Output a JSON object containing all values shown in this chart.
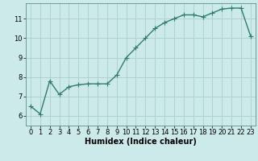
{
  "x": [
    0,
    1,
    2,
    3,
    4,
    5,
    6,
    7,
    8,
    9,
    10,
    11,
    12,
    13,
    14,
    15,
    16,
    17,
    18,
    19,
    20,
    21,
    22,
    23
  ],
  "y": [
    6.5,
    6.1,
    7.8,
    7.1,
    7.5,
    7.6,
    7.65,
    7.65,
    7.65,
    8.1,
    9.0,
    9.5,
    10.0,
    10.5,
    10.8,
    11.0,
    11.2,
    11.2,
    11.1,
    11.3,
    11.5,
    11.55,
    11.55,
    10.1
  ],
  "line_color": "#2e7d6e",
  "marker": "+",
  "marker_color": "#2e7d6e",
  "marker_size": 4,
  "bg_color": "#cceaea",
  "grid_color": "#aacece",
  "xlabel": "Humidex (Indice chaleur)",
  "xlim": [
    -0.5,
    23.5
  ],
  "ylim": [
    5.5,
    11.8
  ],
  "yticks": [
    6,
    7,
    8,
    9,
    10,
    11
  ],
  "xticks": [
    0,
    1,
    2,
    3,
    4,
    5,
    6,
    7,
    8,
    9,
    10,
    11,
    12,
    13,
    14,
    15,
    16,
    17,
    18,
    19,
    20,
    21,
    22,
    23
  ],
  "linewidth": 1.0,
  "xlabel_fontsize": 7,
  "tick_fontsize": 6,
  "marker_linewidth": 0.8
}
